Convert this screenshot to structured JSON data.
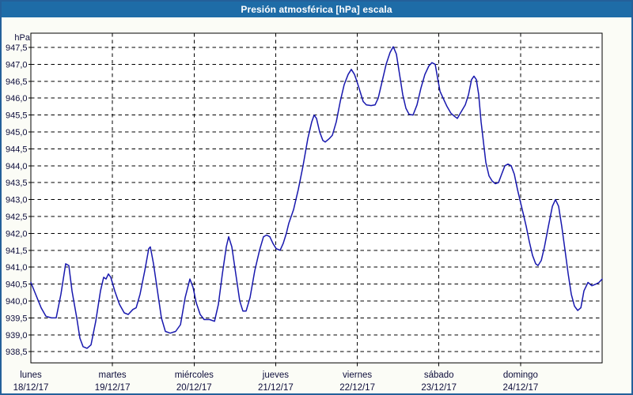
{
  "window": {
    "title": "Presión atmosférica [hPa] escala"
  },
  "colors": {
    "frame": "#24609A",
    "titlebar": "#1E6CA7",
    "titlebar_text": "#FFFFFF",
    "content_bg": "#FBFCF6",
    "plot_bg": "#FFFFFF",
    "grid": "#000000",
    "axis": "#000000",
    "text": "#0D0D3B",
    "line": "#1818AE"
  },
  "chart_data": {
    "type": "line",
    "title": "Presión atmosférica [hPa] escala",
    "ylabel": "hPa",
    "ylim": [
      938.5,
      947.5
    ],
    "y_step": 0.5,
    "y_tick_labels": [
      "947,5",
      "947,0",
      "946,5",
      "946,0",
      "945,5",
      "945,0",
      "944,5",
      "944,0",
      "943,5",
      "943,0",
      "942,5",
      "942,0",
      "941,5",
      "941,0",
      "940,5",
      "940,0",
      "939,5",
      "939,0",
      "938,5"
    ],
    "x_range_days": [
      0,
      7
    ],
    "grid": "dashed",
    "legend": "none",
    "days": [
      {
        "name": "lunes",
        "date": "18/12/17"
      },
      {
        "name": "martes",
        "date": "19/12/17"
      },
      {
        "name": "miércoles",
        "date": "20/12/17"
      },
      {
        "name": "jueves",
        "date": "21/12/17"
      },
      {
        "name": "viernes",
        "date": "22/12/17"
      },
      {
        "name": "sábado",
        "date": "23/12/17"
      },
      {
        "name": "domingo",
        "date": "24/12/17"
      }
    ],
    "series": [
      {
        "name": "Presión atmosférica",
        "units": "hPa",
        "color": "#1818AE",
        "points": [
          [
            0.0,
            940.55
          ],
          [
            0.058,
            940.2
          ],
          [
            0.126,
            939.8
          ],
          [
            0.184,
            939.55
          ],
          [
            0.252,
            939.5
          ],
          [
            0.31,
            939.5
          ],
          [
            0.368,
            940.2
          ],
          [
            0.427,
            941.1
          ],
          [
            0.465,
            941.05
          ],
          [
            0.504,
            940.3
          ],
          [
            0.562,
            939.5
          ],
          [
            0.601,
            938.9
          ],
          [
            0.64,
            938.65
          ],
          [
            0.688,
            938.6
          ],
          [
            0.737,
            938.7
          ],
          [
            0.795,
            939.4
          ],
          [
            0.853,
            940.3
          ],
          [
            0.892,
            940.7
          ],
          [
            0.921,
            940.65
          ],
          [
            0.95,
            940.8
          ],
          [
            0.979,
            940.7
          ],
          [
            1.028,
            940.3
          ],
          [
            1.086,
            939.9
          ],
          [
            1.144,
            939.65
          ],
          [
            1.193,
            939.6
          ],
          [
            1.251,
            939.75
          ],
          [
            1.29,
            939.8
          ],
          [
            1.338,
            940.2
          ],
          [
            1.396,
            940.9
          ],
          [
            1.445,
            941.55
          ],
          [
            1.464,
            941.6
          ],
          [
            1.503,
            941.1
          ],
          [
            1.551,
            940.3
          ],
          [
            1.6,
            939.5
          ],
          [
            1.648,
            939.1
          ],
          [
            1.707,
            939.05
          ],
          [
            1.774,
            939.1
          ],
          [
            1.833,
            939.3
          ],
          [
            1.891,
            940.1
          ],
          [
            1.949,
            940.65
          ],
          [
            1.988,
            940.4
          ],
          [
            2.026,
            939.95
          ],
          [
            2.075,
            939.6
          ],
          [
            2.123,
            939.45
          ],
          [
            2.191,
            939.45
          ],
          [
            2.25,
            939.4
          ],
          [
            2.298,
            939.9
          ],
          [
            2.346,
            940.8
          ],
          [
            2.395,
            941.6
          ],
          [
            2.424,
            941.9
          ],
          [
            2.463,
            941.6
          ],
          [
            2.511,
            940.8
          ],
          [
            2.56,
            940.0
          ],
          [
            2.598,
            939.7
          ],
          [
            2.637,
            939.7
          ],
          [
            2.686,
            940.1
          ],
          [
            2.744,
            940.9
          ],
          [
            2.802,
            941.5
          ],
          [
            2.85,
            941.9
          ],
          [
            2.889,
            941.95
          ],
          [
            2.928,
            941.9
          ],
          [
            2.967,
            941.7
          ],
          [
            3.006,
            941.55
          ],
          [
            3.054,
            941.5
          ],
          [
            3.092,
            941.7
          ],
          [
            3.131,
            942.0
          ],
          [
            3.161,
            942.3
          ],
          [
            3.219,
            942.7
          ],
          [
            3.277,
            943.3
          ],
          [
            3.335,
            944.0
          ],
          [
            3.393,
            944.8
          ],
          [
            3.442,
            945.3
          ],
          [
            3.471,
            945.5
          ],
          [
            3.5,
            945.4
          ],
          [
            3.539,
            945.0
          ],
          [
            3.578,
            944.75
          ],
          [
            3.607,
            944.7
          ],
          [
            3.655,
            944.8
          ],
          [
            3.694,
            944.9
          ],
          [
            3.742,
            945.3
          ],
          [
            3.791,
            945.9
          ],
          [
            3.839,
            946.4
          ],
          [
            3.888,
            946.7
          ],
          [
            3.927,
            946.85
          ],
          [
            3.965,
            946.7
          ],
          [
            3.994,
            946.5
          ],
          [
            4.033,
            946.2
          ],
          [
            4.072,
            945.9
          ],
          [
            4.111,
            945.8
          ],
          [
            4.169,
            945.78
          ],
          [
            4.217,
            945.8
          ],
          [
            4.256,
            946.0
          ],
          [
            4.305,
            946.5
          ],
          [
            4.353,
            947.0
          ],
          [
            4.402,
            947.35
          ],
          [
            4.44,
            947.52
          ],
          [
            4.479,
            947.3
          ],
          [
            4.518,
            946.7
          ],
          [
            4.557,
            946.1
          ],
          [
            4.596,
            945.7
          ],
          [
            4.634,
            945.52
          ],
          [
            4.683,
            945.5
          ],
          [
            4.731,
            945.8
          ],
          [
            4.78,
            946.3
          ],
          [
            4.828,
            946.7
          ],
          [
            4.877,
            946.95
          ],
          [
            4.915,
            947.05
          ],
          [
            4.954,
            947.0
          ],
          [
            4.983,
            946.6
          ],
          [
            5.013,
            946.2
          ],
          [
            5.051,
            946.0
          ],
          [
            5.1,
            945.75
          ],
          [
            5.148,
            945.55
          ],
          [
            5.197,
            945.45
          ],
          [
            5.226,
            945.4
          ],
          [
            5.274,
            945.6
          ],
          [
            5.323,
            945.8
          ],
          [
            5.362,
            946.1
          ],
          [
            5.4,
            946.55
          ],
          [
            5.429,
            946.65
          ],
          [
            5.458,
            946.55
          ],
          [
            5.488,
            946.1
          ],
          [
            5.517,
            945.3
          ],
          [
            5.546,
            944.7
          ],
          [
            5.575,
            944.1
          ],
          [
            5.614,
            943.7
          ],
          [
            5.652,
            943.55
          ],
          [
            5.691,
            943.47
          ],
          [
            5.73,
            943.5
          ],
          [
            5.769,
            943.75
          ],
          [
            5.808,
            944.0
          ],
          [
            5.846,
            944.05
          ],
          [
            5.885,
            944.0
          ],
          [
            5.924,
            943.75
          ],
          [
            5.963,
            943.3
          ],
          [
            5.992,
            943.0
          ],
          [
            6.031,
            942.6
          ],
          [
            6.07,
            942.2
          ],
          [
            6.108,
            941.75
          ],
          [
            6.147,
            941.35
          ],
          [
            6.186,
            941.1
          ],
          [
            6.215,
            941.05
          ],
          [
            6.254,
            941.2
          ],
          [
            6.293,
            941.6
          ],
          [
            6.341,
            942.2
          ],
          [
            6.39,
            942.8
          ],
          [
            6.428,
            943.0
          ],
          [
            6.467,
            942.8
          ],
          [
            6.506,
            942.2
          ],
          [
            6.545,
            941.5
          ],
          [
            6.584,
            940.8
          ],
          [
            6.622,
            940.2
          ],
          [
            6.661,
            939.85
          ],
          [
            6.7,
            939.72
          ],
          [
            6.739,
            939.8
          ],
          [
            6.777,
            940.3
          ],
          [
            6.826,
            940.55
          ],
          [
            6.874,
            940.45
          ],
          [
            6.923,
            940.5
          ],
          [
            6.961,
            940.55
          ],
          [
            7.0,
            940.65
          ]
        ]
      }
    ]
  }
}
